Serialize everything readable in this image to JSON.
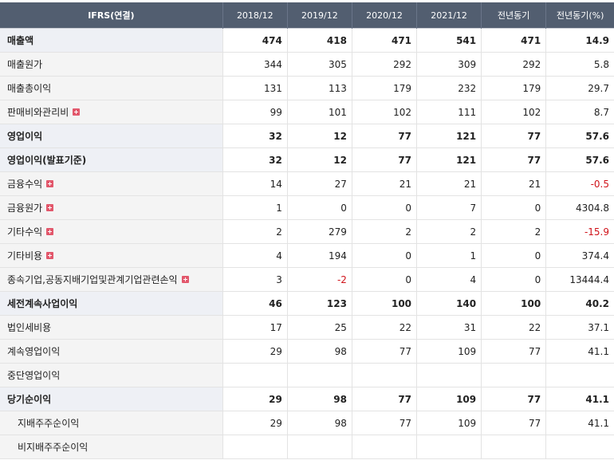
{
  "columns": [
    "IFRS(연결)",
    "2018/12",
    "2019/12",
    "2020/12",
    "2021/12",
    "전년동기",
    "전년동기(%)"
  ],
  "rows": [
    {
      "label": "매출액",
      "values": [
        "474",
        "418",
        "471",
        "541",
        "471",
        "14.9"
      ],
      "bold": true,
      "expand": false,
      "sub": false,
      "neg": [
        false,
        false,
        false,
        false,
        false,
        false
      ]
    },
    {
      "label": "매출원가",
      "values": [
        "344",
        "305",
        "292",
        "309",
        "292",
        "5.8"
      ],
      "bold": false,
      "expand": false,
      "sub": false,
      "neg": [
        false,
        false,
        false,
        false,
        false,
        false
      ]
    },
    {
      "label": "매출총이익",
      "values": [
        "131",
        "113",
        "179",
        "232",
        "179",
        "29.7"
      ],
      "bold": false,
      "expand": false,
      "sub": false,
      "neg": [
        false,
        false,
        false,
        false,
        false,
        false
      ]
    },
    {
      "label": "판매비와관리비",
      "values": [
        "99",
        "101",
        "102",
        "111",
        "102",
        "8.7"
      ],
      "bold": false,
      "expand": true,
      "sub": false,
      "neg": [
        false,
        false,
        false,
        false,
        false,
        false
      ]
    },
    {
      "label": "영업이익",
      "values": [
        "32",
        "12",
        "77",
        "121",
        "77",
        "57.6"
      ],
      "bold": true,
      "expand": false,
      "sub": false,
      "neg": [
        false,
        false,
        false,
        false,
        false,
        false
      ]
    },
    {
      "label": "영업이익(발표기준)",
      "values": [
        "32",
        "12",
        "77",
        "121",
        "77",
        "57.6"
      ],
      "bold": true,
      "expand": false,
      "sub": false,
      "neg": [
        false,
        false,
        false,
        false,
        false,
        false
      ]
    },
    {
      "label": "금융수익",
      "values": [
        "14",
        "27",
        "21",
        "21",
        "21",
        "-0.5"
      ],
      "bold": false,
      "expand": true,
      "sub": false,
      "neg": [
        false,
        false,
        false,
        false,
        false,
        true
      ]
    },
    {
      "label": "금융원가",
      "values": [
        "1",
        "0",
        "0",
        "7",
        "0",
        "4304.8"
      ],
      "bold": false,
      "expand": true,
      "sub": false,
      "neg": [
        false,
        false,
        false,
        false,
        false,
        false
      ]
    },
    {
      "label": "기타수익",
      "values": [
        "2",
        "279",
        "2",
        "2",
        "2",
        "-15.9"
      ],
      "bold": false,
      "expand": true,
      "sub": false,
      "neg": [
        false,
        false,
        false,
        false,
        false,
        true
      ]
    },
    {
      "label": "기타비용",
      "values": [
        "4",
        "194",
        "0",
        "1",
        "0",
        "374.4"
      ],
      "bold": false,
      "expand": true,
      "sub": false,
      "neg": [
        false,
        false,
        false,
        false,
        false,
        false
      ]
    },
    {
      "label": "종속기업,공동지배기업및관계기업관련손익",
      "values": [
        "3",
        "-2",
        "0",
        "4",
        "0",
        "13444.4"
      ],
      "bold": false,
      "expand": true,
      "sub": false,
      "neg": [
        false,
        true,
        false,
        false,
        false,
        false
      ]
    },
    {
      "label": "세전계속사업이익",
      "values": [
        "46",
        "123",
        "100",
        "140",
        "100",
        "40.2"
      ],
      "bold": true,
      "expand": false,
      "sub": false,
      "neg": [
        false,
        false,
        false,
        false,
        false,
        false
      ]
    },
    {
      "label": "법인세비용",
      "values": [
        "17",
        "25",
        "22",
        "31",
        "22",
        "37.1"
      ],
      "bold": false,
      "expand": false,
      "sub": false,
      "neg": [
        false,
        false,
        false,
        false,
        false,
        false
      ]
    },
    {
      "label": "계속영업이익",
      "values": [
        "29",
        "98",
        "77",
        "109",
        "77",
        "41.1"
      ],
      "bold": false,
      "expand": false,
      "sub": false,
      "neg": [
        false,
        false,
        false,
        false,
        false,
        false
      ]
    },
    {
      "label": "중단영업이익",
      "values": [
        "",
        "",
        "",
        "",
        "",
        ""
      ],
      "bold": false,
      "expand": false,
      "sub": false,
      "neg": [
        false,
        false,
        false,
        false,
        false,
        false
      ]
    },
    {
      "label": "당기순이익",
      "values": [
        "29",
        "98",
        "77",
        "109",
        "77",
        "41.1"
      ],
      "bold": true,
      "expand": false,
      "sub": false,
      "neg": [
        false,
        false,
        false,
        false,
        false,
        false
      ]
    },
    {
      "label": "지배주주순이익",
      "values": [
        "29",
        "98",
        "77",
        "109",
        "77",
        "41.1"
      ],
      "bold": false,
      "expand": false,
      "sub": true,
      "neg": [
        false,
        false,
        false,
        false,
        false,
        false
      ]
    },
    {
      "label": "비지배주주순이익",
      "values": [
        "",
        "",
        "",
        "",
        "",
        ""
      ],
      "bold": false,
      "expand": false,
      "sub": true,
      "neg": [
        false,
        false,
        false,
        false,
        false,
        false
      ]
    }
  ]
}
